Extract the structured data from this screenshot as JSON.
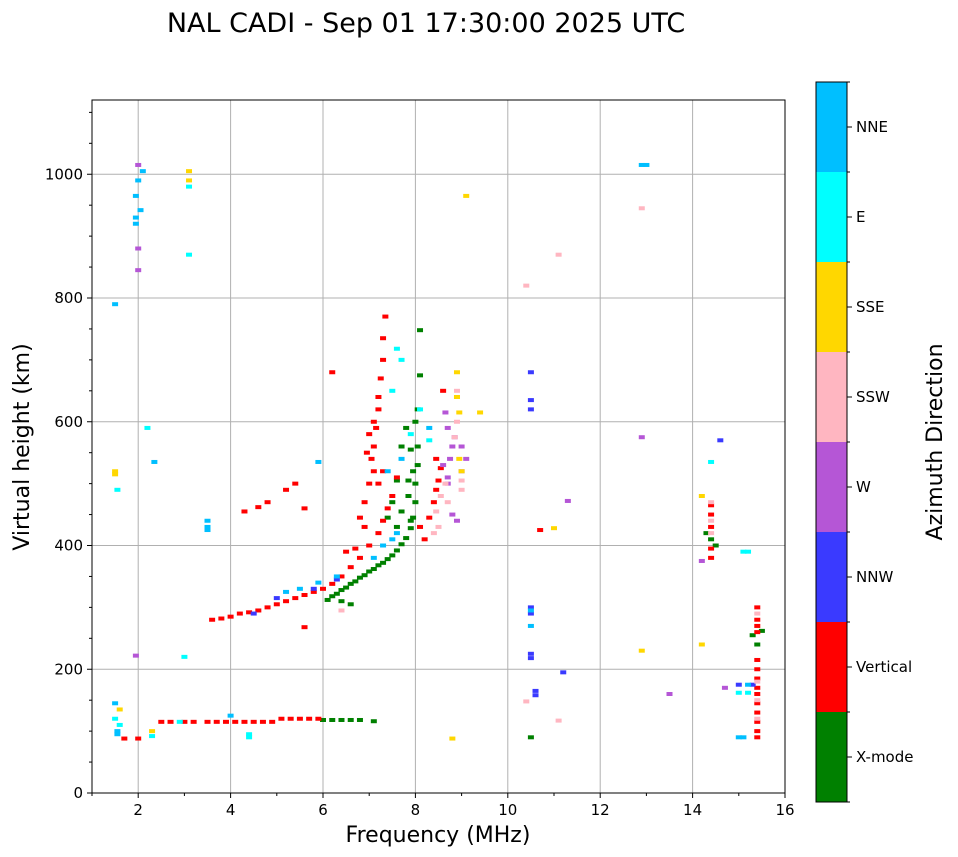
{
  "chart_data": {
    "type": "scatter",
    "title": "NAL CADI - Sep 01 17:30:00 2025 UTC",
    "xlabel": "Frequency (MHz)",
    "ylabel": "Virtual height (km)",
    "xlim": [
      1,
      16
    ],
    "ylim": [
      0,
      1120
    ],
    "xticks": [
      2,
      4,
      6,
      8,
      10,
      12,
      14,
      16
    ],
    "yticks": [
      0,
      200,
      400,
      600,
      800,
      1000
    ],
    "grid": true,
    "colorbar": {
      "label": "Azimuth Direction",
      "categories": [
        {
          "name": "X-mode",
          "color": "#008000"
        },
        {
          "name": "Vertical",
          "color": "#ff0000"
        },
        {
          "name": "NNW",
          "color": "#3a3aff"
        },
        {
          "name": "W",
          "color": "#b556d6"
        },
        {
          "name": "SSW",
          "color": "#ffb6c1"
        },
        {
          "name": "SSE",
          "color": "#ffd700"
        },
        {
          "name": "E",
          "color": "#00ffff"
        },
        {
          "name": "NNE",
          "color": "#00bfff"
        }
      ]
    },
    "series": [
      {
        "name": "X-mode",
        "points": [
          [
            6.1,
            312
          ],
          [
            6.2,
            318
          ],
          [
            6.3,
            322
          ],
          [
            6.4,
            328
          ],
          [
            6.5,
            332
          ],
          [
            6.6,
            338
          ],
          [
            6.7,
            342
          ],
          [
            6.8,
            348
          ],
          [
            6.9,
            352
          ],
          [
            7.0,
            358
          ],
          [
            7.1,
            362
          ],
          [
            7.2,
            368
          ],
          [
            7.3,
            372
          ],
          [
            7.4,
            378
          ],
          [
            7.5,
            384
          ],
          [
            7.6,
            392
          ],
          [
            7.7,
            402
          ],
          [
            7.8,
            412
          ],
          [
            7.9,
            428
          ],
          [
            7.95,
            445
          ],
          [
            8.0,
            470
          ],
          [
            8.0,
            500
          ],
          [
            8.05,
            530
          ],
          [
            8.05,
            560
          ],
          [
            7.9,
            440
          ],
          [
            7.85,
            480
          ],
          [
            7.95,
            520
          ],
          [
            8.0,
            600
          ],
          [
            8.05,
            620
          ],
          [
            7.7,
            560
          ],
          [
            7.8,
            590
          ],
          [
            7.6,
            505
          ],
          [
            7.5,
            470
          ],
          [
            7.4,
            445
          ],
          [
            7.6,
            430
          ],
          [
            7.7,
            455
          ],
          [
            7.85,
            505
          ],
          [
            7.9,
            555
          ],
          [
            6.6,
            305
          ],
          [
            6.4,
            310
          ],
          [
            6.0,
            118
          ],
          [
            6.2,
            118
          ],
          [
            6.4,
            118
          ],
          [
            6.6,
            118
          ],
          [
            6.8,
            118
          ],
          [
            7.1,
            116
          ],
          [
            8.1,
            748
          ],
          [
            8.1,
            675
          ],
          [
            10.5,
            90
          ],
          [
            15.3,
            255
          ],
          [
            15.4,
            240
          ],
          [
            15.5,
            262
          ],
          [
            14.4,
            410
          ],
          [
            14.5,
            400
          ],
          [
            14.3,
            420
          ]
        ]
      },
      {
        "name": "Vertical",
        "points": [
          [
            1.7,
            88
          ],
          [
            2.0,
            88
          ],
          [
            2.5,
            115
          ],
          [
            2.7,
            115
          ],
          [
            3.0,
            115
          ],
          [
            3.2,
            115
          ],
          [
            3.5,
            115
          ],
          [
            3.7,
            115
          ],
          [
            3.9,
            115
          ],
          [
            4.1,
            115
          ],
          [
            4.3,
            115
          ],
          [
            4.5,
            115
          ],
          [
            4.7,
            115
          ],
          [
            4.9,
            115
          ],
          [
            5.1,
            120
          ],
          [
            5.3,
            120
          ],
          [
            5.5,
            120
          ],
          [
            5.7,
            120
          ],
          [
            5.9,
            120
          ],
          [
            3.6,
            280
          ],
          [
            3.8,
            282
          ],
          [
            4.0,
            285
          ],
          [
            4.2,
            290
          ],
          [
            4.4,
            292
          ],
          [
            4.6,
            295
          ],
          [
            4.8,
            300
          ],
          [
            5.0,
            305
          ],
          [
            5.2,
            310
          ],
          [
            5.4,
            315
          ],
          [
            5.6,
            320
          ],
          [
            5.8,
            325
          ],
          [
            6.0,
            330
          ],
          [
            6.2,
            338
          ],
          [
            6.4,
            350
          ],
          [
            6.6,
            365
          ],
          [
            6.8,
            380
          ],
          [
            7.0,
            400
          ],
          [
            7.2,
            420
          ],
          [
            7.3,
            440
          ],
          [
            7.4,
            460
          ],
          [
            7.5,
            480
          ],
          [
            7.6,
            510
          ],
          [
            7.1,
            520
          ],
          [
            7.0,
            500
          ],
          [
            6.9,
            470
          ],
          [
            6.95,
            550
          ],
          [
            7.0,
            580
          ],
          [
            7.1,
            600
          ],
          [
            7.2,
            640
          ],
          [
            7.25,
            670
          ],
          [
            7.3,
            700
          ],
          [
            7.3,
            735
          ],
          [
            7.35,
            770
          ],
          [
            7.2,
            620
          ],
          [
            7.15,
            590
          ],
          [
            7.1,
            560
          ],
          [
            7.05,
            540
          ],
          [
            6.9,
            430
          ],
          [
            6.8,
            445
          ],
          [
            7.2,
            500
          ],
          [
            7.3,
            520
          ],
          [
            6.5,
            390
          ],
          [
            6.7,
            395
          ],
          [
            8.1,
            430
          ],
          [
            8.2,
            410
          ],
          [
            8.3,
            445
          ],
          [
            8.4,
            470
          ],
          [
            8.45,
            490
          ],
          [
            8.5,
            505
          ],
          [
            8.55,
            525
          ],
          [
            8.6,
            650
          ],
          [
            8.45,
            540
          ],
          [
            5.6,
            460
          ],
          [
            5.4,
            500
          ],
          [
            5.2,
            490
          ],
          [
            4.8,
            470
          ],
          [
            4.6,
            462
          ],
          [
            4.3,
            455
          ],
          [
            6.2,
            680
          ],
          [
            5.6,
            268
          ],
          [
            10.7,
            425
          ],
          [
            14.4,
            465
          ],
          [
            14.4,
            450
          ],
          [
            14.4,
            430
          ],
          [
            14.4,
            395
          ],
          [
            14.4,
            380
          ],
          [
            15.4,
            300
          ],
          [
            15.4,
            280
          ],
          [
            15.4,
            270
          ],
          [
            15.4,
            260
          ],
          [
            15.4,
            215
          ],
          [
            15.4,
            200
          ],
          [
            15.4,
            185
          ],
          [
            15.4,
            170
          ],
          [
            15.4,
            160
          ],
          [
            15.4,
            145
          ],
          [
            15.4,
            130
          ],
          [
            15.4,
            115
          ],
          [
            15.4,
            100
          ],
          [
            15.4,
            90
          ]
        ]
      },
      {
        "name": "NNW",
        "points": [
          [
            10.5,
            680
          ],
          [
            10.5,
            635
          ],
          [
            10.5,
            620
          ],
          [
            10.5,
            300
          ],
          [
            10.5,
            290
          ],
          [
            10.5,
            225
          ],
          [
            10.5,
            218
          ],
          [
            10.6,
            165
          ],
          [
            10.6,
            158
          ],
          [
            14.6,
            570
          ],
          [
            15.0,
            175
          ],
          [
            15.3,
            175
          ],
          [
            11.2,
            195
          ],
          [
            4.5,
            290
          ],
          [
            5.0,
            315
          ],
          [
            5.8,
            330
          ],
          [
            6.3,
            345
          ]
        ]
      },
      {
        "name": "W",
        "points": [
          [
            2.0,
            1015
          ],
          [
            2.0,
            880
          ],
          [
            2.0,
            845
          ],
          [
            1.95,
            222
          ],
          [
            8.7,
            500
          ],
          [
            8.7,
            510
          ],
          [
            8.75,
            540
          ],
          [
            8.8,
            560
          ],
          [
            8.7,
            590
          ],
          [
            8.65,
            615
          ],
          [
            8.8,
            450
          ],
          [
            8.9,
            440
          ],
          [
            9.0,
            560
          ],
          [
            9.1,
            540
          ],
          [
            13.5,
            160
          ],
          [
            14.7,
            170
          ],
          [
            12.9,
            575
          ],
          [
            14.2,
            375
          ],
          [
            11.3,
            472
          ],
          [
            8.6,
            530
          ],
          [
            8.85,
            575
          ],
          [
            9.0,
            520
          ]
        ]
      },
      {
        "name": "SSW",
        "points": [
          [
            8.4,
            420
          ],
          [
            8.5,
            430
          ],
          [
            8.45,
            455
          ],
          [
            8.55,
            480
          ],
          [
            8.7,
            470
          ],
          [
            8.65,
            500
          ],
          [
            8.9,
            650
          ],
          [
            8.9,
            600
          ],
          [
            8.85,
            575
          ],
          [
            9.0,
            490
          ],
          [
            9.0,
            505
          ],
          [
            12.9,
            945
          ],
          [
            11.1,
            870
          ],
          [
            10.4,
            820
          ],
          [
            10.4,
            148
          ],
          [
            11.1,
            117
          ],
          [
            6.4,
            295
          ],
          [
            14.4,
            470
          ],
          [
            14.4,
            440
          ],
          [
            14.4,
            420
          ],
          [
            15.4,
            290
          ],
          [
            15.4,
            180
          ],
          [
            15.4,
            150
          ],
          [
            15.4,
            120
          ]
        ]
      },
      {
        "name": "SSE",
        "points": [
          [
            3.1,
            1005
          ],
          [
            3.1,
            990
          ],
          [
            1.5,
            520
          ],
          [
            1.5,
            515
          ],
          [
            9.1,
            965
          ],
          [
            8.9,
            640
          ],
          [
            8.95,
            615
          ],
          [
            8.9,
            680
          ],
          [
            9.0,
            520
          ],
          [
            8.95,
            540
          ],
          [
            9.4,
            615
          ],
          [
            11.0,
            428
          ],
          [
            12.9,
            230
          ],
          [
            14.2,
            480
          ],
          [
            14.2,
            240
          ],
          [
            8.8,
            88
          ],
          [
            2.3,
            100
          ],
          [
            1.6,
            135
          ]
        ]
      },
      {
        "name": "E",
        "points": [
          [
            1.55,
            490
          ],
          [
            2.2,
            590
          ],
          [
            3.1,
            870
          ],
          [
            3.1,
            980
          ],
          [
            3.0,
            220
          ],
          [
            4.4,
            95
          ],
          [
            4.4,
            90
          ],
          [
            7.6,
            718
          ],
          [
            7.7,
            700
          ],
          [
            7.9,
            580
          ],
          [
            8.1,
            620
          ],
          [
            8.3,
            570
          ],
          [
            7.5,
            650
          ],
          [
            15.1,
            390
          ],
          [
            15.2,
            390
          ],
          [
            14.4,
            535
          ],
          [
            15.0,
            162
          ],
          [
            15.2,
            162
          ],
          [
            1.5,
            120
          ],
          [
            1.6,
            110
          ],
          [
            2.3,
            92
          ],
          [
            2.9,
            115
          ]
        ]
      },
      {
        "name": "NNE",
        "points": [
          [
            1.5,
            790
          ],
          [
            2.0,
            990
          ],
          [
            1.95,
            965
          ],
          [
            1.95,
            930
          ],
          [
            1.95,
            920
          ],
          [
            2.1,
            1005
          ],
          [
            2.05,
            942
          ],
          [
            2.35,
            535
          ],
          [
            5.9,
            535
          ],
          [
            3.5,
            440
          ],
          [
            3.5,
            430
          ],
          [
            3.5,
            425
          ],
          [
            1.55,
            100
          ],
          [
            1.55,
            95
          ],
          [
            1.5,
            145
          ],
          [
            10.5,
            295
          ],
          [
            10.5,
            270
          ],
          [
            15.0,
            90
          ],
          [
            15.1,
            90
          ],
          [
            4.0,
            125
          ],
          [
            5.2,
            325
          ],
          [
            5.5,
            330
          ],
          [
            5.9,
            340
          ],
          [
            6.3,
            350
          ],
          [
            7.1,
            380
          ],
          [
            7.3,
            400
          ],
          [
            7.6,
            420
          ],
          [
            7.5,
            410
          ],
          [
            7.7,
            540
          ],
          [
            7.4,
            520
          ],
          [
            8.3,
            590
          ],
          [
            12.9,
            1015
          ],
          [
            13.0,
            1015
          ],
          [
            15.2,
            175
          ]
        ]
      }
    ]
  }
}
